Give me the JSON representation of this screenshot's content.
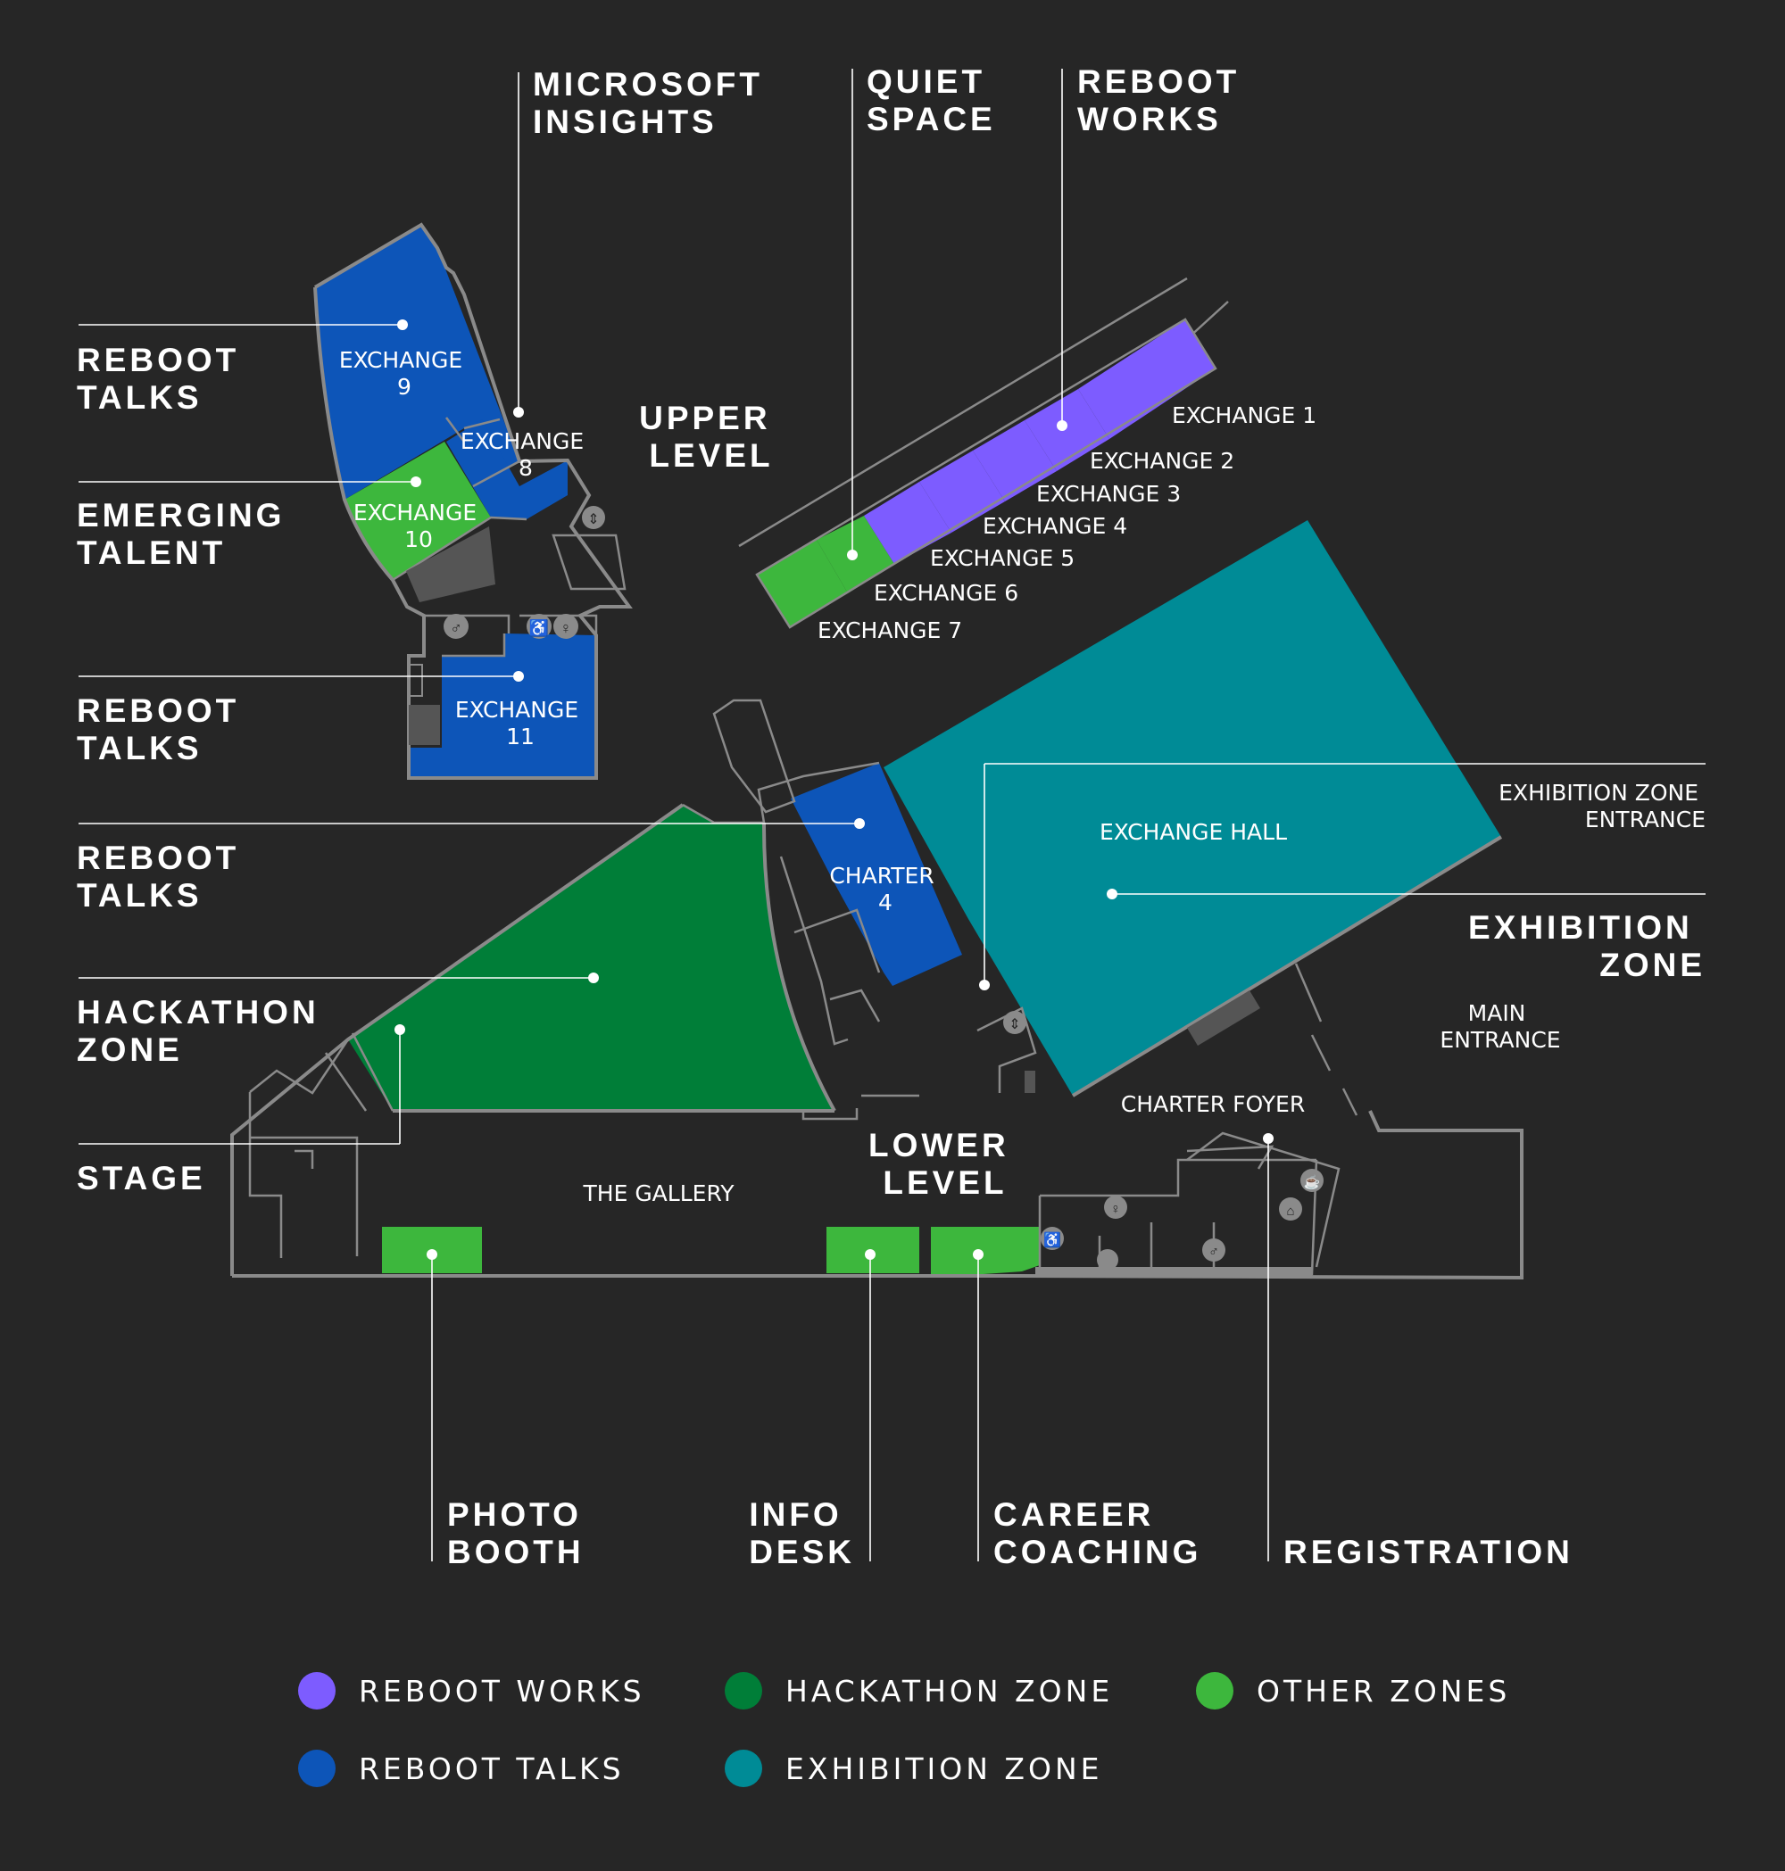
{
  "colors": {
    "background": "#262626",
    "reboot_works": "#7d5cff",
    "reboot_talks": "#0d55b8",
    "hackathon_zone": "#007e38",
    "exhibition_zone": "#008b96",
    "other_zones": "#3db73d",
    "walls": "#8a8a8a",
    "text": "#ffffff"
  },
  "levels": {
    "upper": [
      "UPPER",
      "LEVEL"
    ],
    "lower": [
      "LOWER",
      "LEVEL"
    ]
  },
  "callouts": {
    "microsoft_insights": [
      "MICROSOFT",
      "INSIGHTS"
    ],
    "quiet_space": [
      "QUIET",
      "SPACE"
    ],
    "reboot_works": [
      "REBOOT",
      "WORKS"
    ],
    "reboot_talks_1": [
      "REBOOT",
      "TALKS"
    ],
    "emerging_talent": [
      "EMERGING",
      "TALENT"
    ],
    "reboot_talks_2": [
      "REBOOT",
      "TALKS"
    ],
    "reboot_talks_3": [
      "REBOOT",
      "TALKS"
    ],
    "hackathon_zone": [
      "HACKATHON",
      "ZONE"
    ],
    "stage": [
      "STAGE"
    ],
    "exhibition_zone": [
      "EXHIBITION",
      "ZONE"
    ],
    "photo_booth": [
      "PHOTO",
      "BOOTH"
    ],
    "info_desk": [
      "INFO",
      "DESK"
    ],
    "career_coaching": [
      "CAREER",
      "COACHING"
    ],
    "registration": [
      "REGISTRATION"
    ]
  },
  "rooms": {
    "exchange_9": [
      "EXCHANGE",
      "9"
    ],
    "exchange_8": [
      "EXCHANGE",
      "8"
    ],
    "exchange_10": [
      "EXCHANGE",
      "10"
    ],
    "exchange_11": [
      "EXCHANGE",
      "11"
    ],
    "charter_4": [
      "CHARTER",
      "4"
    ],
    "exchange_hall": "EXCHANGE HALL",
    "exchange_1": "EXCHANGE 1",
    "exchange_2": "EXCHANGE 2",
    "exchange_3": "EXCHANGE 3",
    "exchange_4": "EXCHANGE 4",
    "exchange_5": "EXCHANGE 5",
    "exchange_6": "EXCHANGE 6",
    "exchange_7": "EXCHANGE 7",
    "exhibition_entrance": [
      "EXHIBITION ZONE",
      "ENTRANCE"
    ],
    "main_entrance": [
      "MAIN",
      "ENTRANCE"
    ],
    "charter_foyer": "CHARTER FOYER",
    "the_gallery": "THE GALLERY"
  },
  "legend": [
    {
      "label": "REBOOT WORKS",
      "color": "#7d5cff"
    },
    {
      "label": "HACKATHON ZONE",
      "color": "#007e38"
    },
    {
      "label": "OTHER ZONES",
      "color": "#3db73d"
    },
    {
      "label": "REBOOT TALKS",
      "color": "#0d55b8"
    },
    {
      "label": "EXHIBITION ZONE",
      "color": "#008b96"
    }
  ],
  "icons": [
    "toilet-icon",
    "accessible-toilet-icon",
    "lift-icon",
    "stairs-icon",
    "cloakroom-icon",
    "cafe-icon"
  ]
}
